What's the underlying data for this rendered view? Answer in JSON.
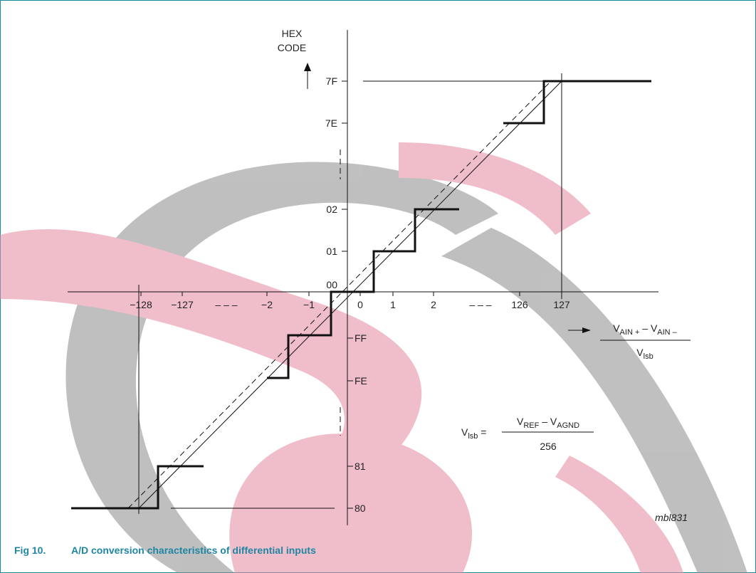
{
  "figure": {
    "y_axis_label": [
      "HEX",
      "CODE"
    ],
    "y_ticks": [
      "7F",
      "7E",
      "02",
      "01",
      "00",
      "FF",
      "FE",
      "81",
      "80"
    ],
    "x_ticks": [
      "−128",
      "−127",
      "−2",
      "−1",
      "0",
      "1",
      "2",
      "126",
      "127"
    ],
    "x_ellipsis": [
      "– – –",
      "– – –"
    ],
    "x_quantity": {
      "numerator_parts": [
        "V",
        "AIN +",
        " – V",
        "AIN –"
      ],
      "denominator_parts": [
        "V",
        "lsb"
      ]
    },
    "lsb_definition": {
      "lhs_parts": [
        "V",
        "lsb",
        " ="
      ],
      "numerator_parts": [
        "V",
        "REF",
        " – V",
        "AGND"
      ],
      "denominator": "256"
    },
    "code": "mbl831",
    "caption": {
      "number": "Fig 10.",
      "text": "A/D conversion characteristics of differential inputs"
    }
  }
}
